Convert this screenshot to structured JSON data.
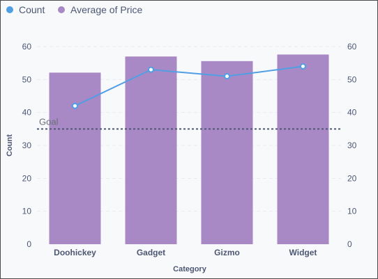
{
  "colors": {
    "count": "#509ee3",
    "average_of_price": "#a989c5",
    "goal_line": "#4c5773",
    "grid": "#e8eaee",
    "text": "#4c5773"
  },
  "legend": [
    {
      "label": "Count",
      "color": "#509ee3"
    },
    {
      "label": "Average of Price",
      "color": "#a989c5"
    }
  ],
  "chart_data": {
    "type": "bar",
    "categories": [
      "Doohickey",
      "Gadget",
      "Gizmo",
      "Widget"
    ],
    "series": [
      {
        "name": "Average of Price",
        "type": "bar",
        "axis": "right",
        "values": [
          52.1,
          57.0,
          55.6,
          57.6
        ]
      },
      {
        "name": "Count",
        "type": "line",
        "axis": "left",
        "values": [
          42,
          53,
          51,
          54
        ]
      }
    ],
    "goal": {
      "label": "Goal",
      "value": 35
    },
    "xlabel": "Category",
    "ylabel": "Count",
    "ylim": [
      0,
      60
    ],
    "y2lim": [
      0,
      60
    ],
    "yticks": [
      0,
      10,
      20,
      30,
      40,
      50,
      60
    ],
    "grid": true,
    "legend_position": "top-left"
  }
}
